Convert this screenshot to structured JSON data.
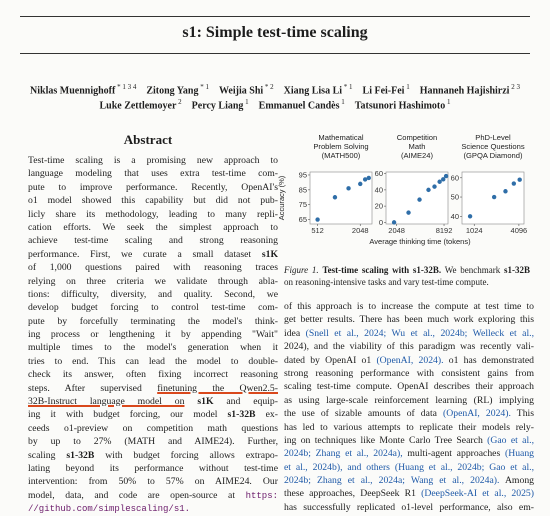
{
  "paper": {
    "title": "s1: Simple test-time scaling",
    "authors_line1": [
      {
        "name": "Niklas Muennighoff",
        "sup": "* 1 3 4"
      },
      {
        "name": "Zitong Yang",
        "sup": "* 1"
      },
      {
        "name": "Weijia Shi",
        "sup": "* 2"
      },
      {
        "name": "Xiang Lisa Li",
        "sup": "* 1"
      },
      {
        "name": "Li Fei-Fei",
        "sup": "1"
      },
      {
        "name": "Hannaneh Hajishirzi",
        "sup": "2 3"
      }
    ],
    "authors_line2": [
      {
        "name": "Luke Zettlemoyer",
        "sup": "2"
      },
      {
        "name": "Percy Liang",
        "sup": "1"
      },
      {
        "name": "Emmanuel Candès",
        "sup": "1"
      },
      {
        "name": "Tatsunori Hashimoto",
        "sup": "1"
      }
    ]
  },
  "abstract": {
    "heading": "Abstract",
    "lines": [
      "Test-time scaling is a promising new approach to",
      "language modeling that uses extra test-time com-",
      "pute to improve performance. Recently, OpenAI's",
      "o1 model showed this capability but did not pub-",
      "licly share its methodology, leading to many repli-",
      "cation efforts. We seek the simplest approach to",
      "achieve test-time scaling and strong reasoning",
      "performance. First, we curate a small dataset",
      "of 1,000 questions paired with reasoning traces",
      "relying on three criteria we validate through abla-",
      "tions: difficulty, diversity, and quality. Second, we",
      "develop budget forcing to control test-time com-",
      "pute by forcefully terminating the model's think-",
      "ing process or lengthening it by appending \"Wait\"",
      "multiple times to the model's generation when it",
      "tries to end. This can lead the model to double-",
      "check its answer, often fixing incorrect reasoning",
      "steps. After supervised",
      "32B-Instruct language model on",
      "ing it with budget forcing, our model",
      "ceeds o1-preview on competition math questions",
      "by up to 27% (MATH and AIME24). Further,",
      "scaling",
      "beyond its performance without test-time",
      "intervention: from 50% to 57% on AIME24. Our",
      "model, data, and code are open-source at"
    ],
    "s1k": "s1K",
    "s1_32b": "s1-32B",
    "l17_underlined": "finetuning the Qwen2.5-",
    "l18_after": "and equip-",
    "l19_after": "ex-",
    "l22_after": "with budget forcing allows extrapo-",
    "l23_prefix": "lating",
    "url_end": "https:",
    "url": "//github.com/simplescaling/s1."
  },
  "figure": {
    "caption_label": "Figure 1.",
    "caption_bold": "Test-time scaling with s1-32B.",
    "caption_rest_1": "We benchmark",
    "caption_bold2": "s1-32B",
    "caption_line2": "on reasoning-intensive tasks and vary test-time compute."
  },
  "chart_data": {
    "type": "scatter",
    "ylabel": "Accuracy (%)",
    "xlabel": "Average thinking time (tokens)",
    "panels": [
      {
        "title": [
          "Mathematical",
          "Problem Solving",
          "(MATH500)"
        ],
        "y_ticks": [
          "65",
          "75",
          "85",
          "95"
        ],
        "ylim": [
          62,
          97
        ],
        "x_ticks": [
          "512",
          "2048"
        ],
        "xlim": [
          400,
          3000
        ],
        "points": [
          [
            512,
            65
          ],
          [
            900,
            80
          ],
          [
            1400,
            86
          ],
          [
            2048,
            89
          ],
          [
            2400,
            92
          ],
          [
            2700,
            93
          ]
        ]
      },
      {
        "title": [
          "Competition",
          "Math",
          "(AIME24)"
        ],
        "y_ticks": [
          "0",
          "20",
          "40",
          "60"
        ],
        "ylim": [
          -2,
          62
        ],
        "x_ticks": [
          "2048",
          "8192"
        ],
        "xlim": [
          1500,
          9200
        ],
        "points": [
          [
            1900,
            0
          ],
          [
            2900,
            12
          ],
          [
            4000,
            28
          ],
          [
            5200,
            40
          ],
          [
            6200,
            44
          ],
          [
            7200,
            50
          ],
          [
            8000,
            53
          ],
          [
            8700,
            57
          ]
        ]
      },
      {
        "title": [
          "PhD-Level",
          "Science Questions",
          "(GPQA Diamond)"
        ],
        "y_ticks": [
          "40",
          "50",
          "60"
        ],
        "ylim": [
          36,
          63
        ],
        "x_ticks": [
          "1024",
          "4096"
        ],
        "xlim": [
          700,
          4800
        ],
        "points": [
          [
            900,
            40
          ],
          [
            1900,
            50
          ],
          [
            2700,
            53
          ],
          [
            3500,
            57
          ],
          [
            4200,
            59
          ]
        ]
      }
    ]
  },
  "intro": {
    "lines": [
      "of this approach is to increase the compute at test time to",
      "get better results. There has been much work exploring this",
      "idea",
      "2024), and the viability of this paradigm was recently vali-",
      "dated by OpenAI o1",
      "strong reasoning performance with consistent gains from",
      "scaling test-time compute. OpenAI describes their approach",
      "as using large-scale reinforcement learning (RL) implying",
      "the use of sizable amounts of data",
      "has led to various attempts to replicate their models rely-",
      "ing on techniques like Monte Carlo Tree Search",
      "2024b;",
      "et al., 2024b), and others",
      "2024b; Zhang et al., 2024a; Wang et al., 2024a).",
      "these approaches, DeepSeek R1",
      "has successfully replicated o1-level performance, also em-"
    ],
    "cite_l2a": "(Snell et al., 2024; Wu et al., 2024b; Welleck et al.,",
    "cite_l4": "(OpenAI, 2024).",
    "l4_after": "o1 has demonstrated",
    "cite_l8": "(OpenAI, 2024).",
    "l8_after": "This",
    "cite_l10": "(Gao et al.,",
    "cite_l11": "Zhang et al., 2024a),",
    "l11_after": "multi-agent approaches",
    "cite_l11b": "(Huang",
    "cite_l12": "(Huang et al., 2024b; Gao et al.,",
    "l13_after": "Among",
    "cite_l14": "(DeepSeek-AI et al., 2025)"
  }
}
